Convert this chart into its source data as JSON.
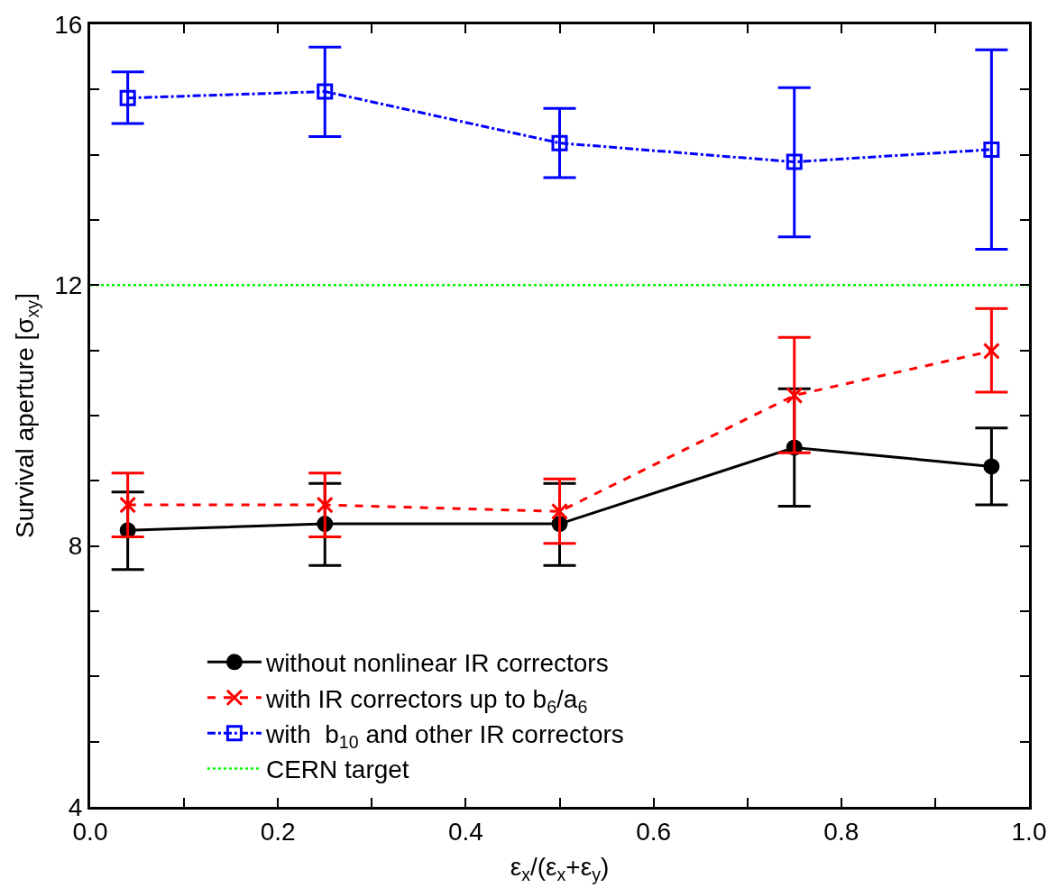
{
  "chart_data": {
    "type": "line",
    "xlabel": "ε$_{x}$/(ε$_{x}$+ε$_{y}$)",
    "ylabel": "Survival aperture [σ$_{xy}$]",
    "x": [
      0.04,
      0.25,
      0.5,
      0.75,
      0.96
    ],
    "series": [
      {
        "name": "without nonlinear IR correctors",
        "color": "#000000",
        "marker": "circle",
        "line_style": "solid",
        "values": [
          8.24,
          8.34,
          8.34,
          9.51,
          9.22
        ],
        "errors": [
          [
            7.64,
            8.83
          ],
          [
            7.7,
            8.96
          ],
          [
            7.7,
            8.96
          ],
          [
            8.61,
            10.41
          ],
          [
            8.63,
            9.81
          ]
        ]
      },
      {
        "name": "with IR correctors up to b$_{6}$/a$_{6}$",
        "color": "#ff0000",
        "marker": "cross",
        "line_style": "dashed",
        "values": [
          8.63,
          8.63,
          8.53,
          10.31,
          10.99
        ],
        "errors": [
          [
            8.14,
            9.12
          ],
          [
            8.14,
            9.12
          ],
          [
            8.04,
            9.03
          ],
          [
            9.43,
            11.2
          ],
          [
            10.36,
            11.64
          ]
        ]
      },
      {
        "name": "with  b$_{10}$ and other IR correctors",
        "color": "#0000ff",
        "marker": "square",
        "line_style": "dashdot",
        "values": [
          14.87,
          14.97,
          14.18,
          13.89,
          14.08
        ],
        "errors": [
          [
            14.48,
            15.27
          ],
          [
            14.28,
            15.65
          ],
          [
            13.65,
            14.71
          ],
          [
            12.74,
            15.03
          ],
          [
            12.55,
            15.61
          ]
        ]
      }
    ],
    "ref_lines": [
      {
        "axis": "y",
        "value": 12,
        "label": "CERN target",
        "color": "#00ff00",
        "line_style": "dotted"
      }
    ],
    "xlim": [
      0,
      1
    ],
    "ylim": [
      4,
      16
    ],
    "xticks": [
      {
        "value": 0,
        "label": "0.0"
      },
      {
        "value": 0.1,
        "label": null
      },
      {
        "value": 0.2,
        "label": "0.2"
      },
      {
        "value": 0.3,
        "label": null
      },
      {
        "value": 0.4,
        "label": "0.4"
      },
      {
        "value": 0.5,
        "label": null
      },
      {
        "value": 0.6,
        "label": "0.6"
      },
      {
        "value": 0.7,
        "label": null
      },
      {
        "value": 0.8,
        "label": "0.8"
      },
      {
        "value": 0.9,
        "label": null
      },
      {
        "value": 1,
        "label": "1.0"
      }
    ],
    "yticks": [
      4,
      {
        "value": 5,
        "label": null
      },
      {
        "value": 6,
        "label": null
      },
      {
        "value": 7,
        "label": null
      },
      8,
      {
        "value": 9,
        "label": null
      },
      {
        "value": 10,
        "label": null
      },
      {
        "value": 11,
        "label": null
      },
      12,
      {
        "value": 13,
        "label": null
      },
      {
        "value": 14,
        "label": null
      },
      {
        "value": 15,
        "label": null
      },
      16
    ],
    "legend": "bottom"
  }
}
